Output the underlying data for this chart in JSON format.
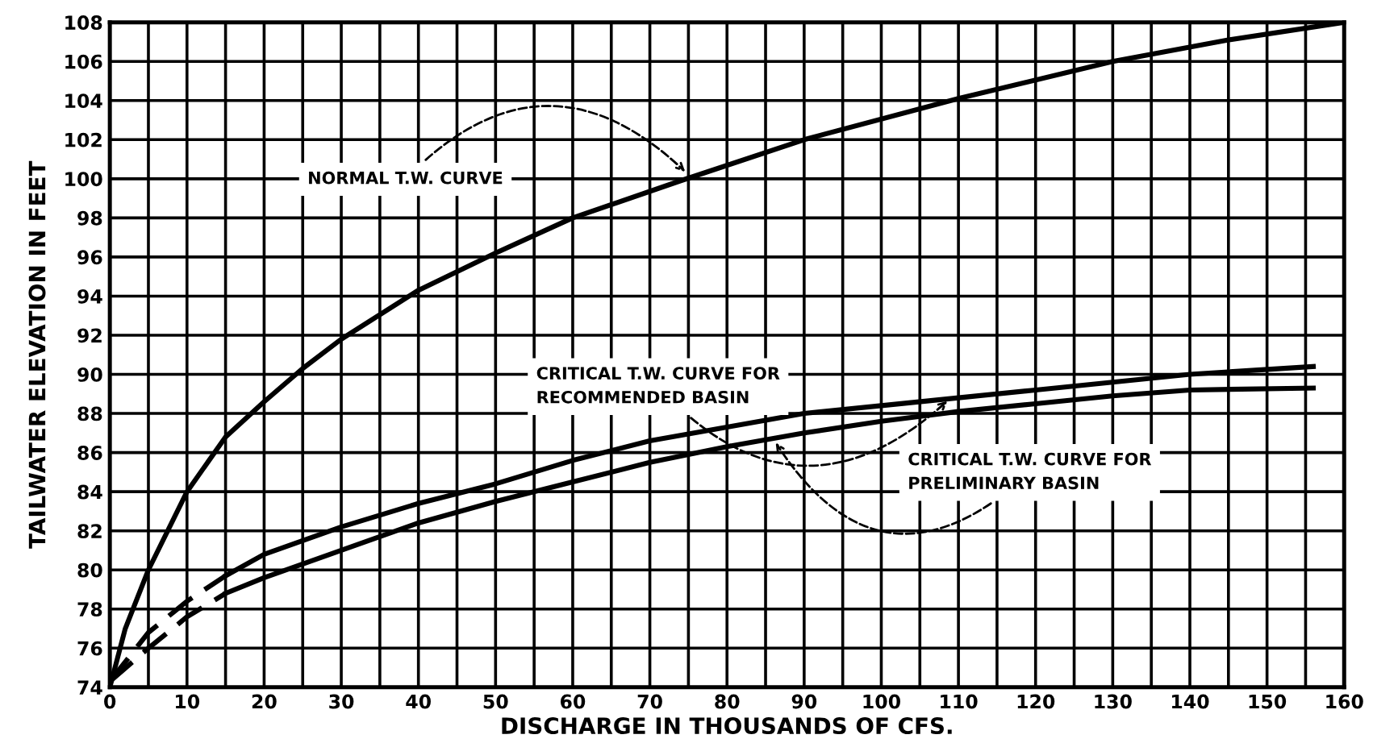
{
  "chart_data": {
    "type": "line",
    "xlabel": "DISCHARGE IN THOUSANDS OF CFS.",
    "ylabel": "TAILWATER ELEVATION IN FEET",
    "xlim": [
      0,
      160
    ],
    "ylim": [
      74,
      108
    ],
    "xticks": [
      0,
      {
        "value": 5,
        "label": null
      },
      10,
      {
        "value": 15,
        "label": null
      },
      20,
      {
        "value": 25,
        "label": null
      },
      30,
      {
        "value": 35,
        "label": null
      },
      40,
      {
        "value": 45,
        "label": null
      },
      50,
      {
        "value": 55,
        "label": null
      },
      60,
      {
        "value": 65,
        "label": null
      },
      70,
      {
        "value": 75,
        "label": null
      },
      80,
      {
        "value": 85,
        "label": null
      },
      90,
      {
        "value": 95,
        "label": null
      },
      100,
      {
        "value": 105,
        "label": null
      },
      110,
      {
        "value": 115,
        "label": null
      },
      120,
      {
        "value": 125,
        "label": null
      },
      130,
      {
        "value": 135,
        "label": null
      },
      140,
      {
        "value": 145,
        "label": null
      },
      150,
      {
        "value": 155,
        "label": null
      },
      160
    ],
    "yticks": [
      74,
      76,
      78,
      80,
      82,
      84,
      86,
      88,
      90,
      92,
      94,
      96,
      98,
      100,
      102,
      104,
      106,
      108
    ],
    "grid": true,
    "marker": "none",
    "series": [
      {
        "color": "#000000",
        "line_style": "solid",
        "x": [
          0,
          2,
          5,
          10,
          15,
          20,
          25,
          30,
          40,
          50,
          60,
          74,
          90,
          110,
          130,
          145,
          160
        ],
        "values": [
          74,
          77,
          80,
          84,
          86.8,
          88.6,
          90.3,
          91.8,
          94.3,
          96.2,
          98,
          99.9,
          102,
          104.1,
          106,
          107.1,
          108
        ]
      },
      {
        "color": "#000000",
        "line_style": "dashed",
        "x": [
          0,
          5,
          10,
          15
        ],
        "values": [
          74.3,
          76.8,
          78.4,
          79.7
        ]
      },
      {
        "color": "#000000",
        "line_style": "solid",
        "x": [
          15,
          20,
          30,
          40,
          50,
          60,
          70,
          80,
          90,
          100,
          110,
          120,
          130,
          140,
          156
        ],
        "values": [
          79.7,
          80.8,
          82.2,
          83.4,
          84.4,
          85.6,
          86.6,
          87.3,
          88,
          88.4,
          88.8,
          89.2,
          89.6,
          90,
          90.4
        ]
      },
      {
        "color": "#000000",
        "line_style": "dashed",
        "x": [
          0,
          5,
          10,
          15
        ],
        "values": [
          74.3,
          76,
          77.6,
          78.8
        ]
      },
      {
        "color": "#000000",
        "line_style": "solid",
        "x": [
          15,
          20,
          30,
          40,
          50,
          60,
          70,
          80,
          90,
          100,
          110,
          120,
          130,
          140,
          156
        ],
        "values": [
          78.8,
          79.6,
          81,
          82.4,
          83.5,
          84.5,
          85.5,
          86.3,
          87,
          87.6,
          88.1,
          88.5,
          88.9,
          89.2,
          89.3
        ]
      }
    ],
    "annotations": [
      {
        "text": "NORMAL T.W. CURVE",
        "x": 75,
        "y": 100.2
      },
      {
        "text": "CRITICAL T.W. CURVE FOR\nRECOMMENDED BASIN",
        "x": 109,
        "y": 88.8
      },
      {
        "text": "CRITICAL T.W. CURVE FOR\nPRELIMINARY BASIN",
        "x": 86,
        "y": 86.7
      }
    ]
  }
}
